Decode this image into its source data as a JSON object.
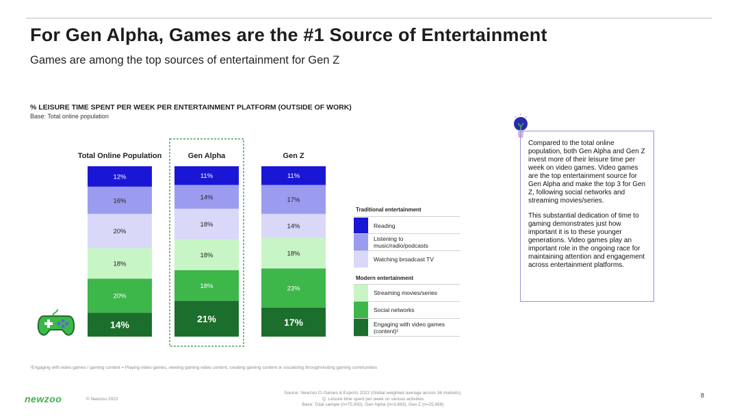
{
  "title": "For Gen Alpha, Games are the #1 Source of Entertainment",
  "subtitle": "Games are among the top sources of entertainment for Gen Z",
  "chart_title": "% LEISURE TIME SPENT PER WEEK PER ENTERTAINMENT PLATFORM (OUTSIDE OF WORK)",
  "chart_base": "Base: Total online population",
  "chart_data": {
    "type": "bar",
    "stacked": true,
    "unit": "%",
    "categories": [
      "Total Online Population",
      "Gen Alpha",
      "Gen Z"
    ],
    "highlighted_category": "Gen Alpha",
    "series": [
      {
        "name": "Reading",
        "group": "Traditional entertainment",
        "color": "#1a16d6",
        "values": [
          12,
          11,
          11
        ],
        "labels": [
          "12%",
          "11%",
          "11%"
        ]
      },
      {
        "name": "Listening to music/radio/podcasts",
        "group": "Traditional entertainment",
        "color": "#9b9cf0",
        "values": [
          16,
          14,
          17
        ],
        "labels": [
          "16%",
          "14%",
          "17%"
        ]
      },
      {
        "name": "Watching broadcast TV",
        "group": "Traditional entertainment",
        "color": "#d9d8f8",
        "values": [
          20,
          18,
          14
        ],
        "labels": [
          "20%",
          "18%",
          "14%"
        ]
      },
      {
        "name": "Streaming movies/series",
        "group": "Modern entertainment",
        "color": "#c8f5c5",
        "values": [
          18,
          18,
          18
        ],
        "labels": [
          "18%",
          "18%",
          "18%"
        ]
      },
      {
        "name": "Social networks",
        "group": "Modern entertainment",
        "color": "#3db64a",
        "values": [
          20,
          18,
          23
        ],
        "labels": [
          "20%",
          "18%",
          "23%"
        ]
      },
      {
        "name": "Engaging with video games (content)",
        "group": "Modern entertainment",
        "color": "#1c6e2c",
        "values": [
          14,
          21,
          17
        ],
        "labels": [
          "14%",
          "21%",
          "17%"
        ]
      }
    ]
  },
  "legend": {
    "traditional_title": "Traditional entertainment",
    "modern_title": "Modern entertainment",
    "items": [
      {
        "label": "Reading",
        "color": "#1a16d6"
      },
      {
        "label": "Listening to music/radio/podcasts",
        "color": "#9b9cf0"
      },
      {
        "label": "Watching broadcast TV",
        "color": "#d9d8f8"
      },
      {
        "label": "Streaming movies/series",
        "color": "#c8f5c5"
      },
      {
        "label": "Social networks",
        "color": "#3db64a"
      },
      {
        "label": "Engaging with video games (content)¹",
        "color": "#1c6e2c"
      }
    ]
  },
  "callout": {
    "paragraph1": "Compared to the total online population, both Gen Alpha and Gen Z invest more of their leisure time per week on video games. Video games are the top entertainment source for Gen Alpha and make the top 3 for Gen Z, following social networks and streaming movies/series.",
    "paragraph2": "This substantial dedication of time to gaming demonstrates just how important it is to these younger generations. Video games play an important role in the ongoing race for maintaining attention and engagement across entertainment platforms."
  },
  "footnote": "¹Engaging with video games / gaming content = Playing video games, viewing gaming video content, creating gaming content or socializing through/visiting gaming communities",
  "source": {
    "line1": "Source: Newzoo CI Games & Esports 2022 (Global weighted average across 36 markets).",
    "line2": "Q. Leisure time spent per week on various activities",
    "line3": "Base: Total sample (n=75,930), Gen Alpha (n=3,693), Gen Z (n=25,659)"
  },
  "page_number": "8",
  "logo_text": "newzoo",
  "copyright": "© Newzoo 2022",
  "colors": {
    "accent_purple": "#9a90d6",
    "highlight_green": "#2e8b3e"
  }
}
